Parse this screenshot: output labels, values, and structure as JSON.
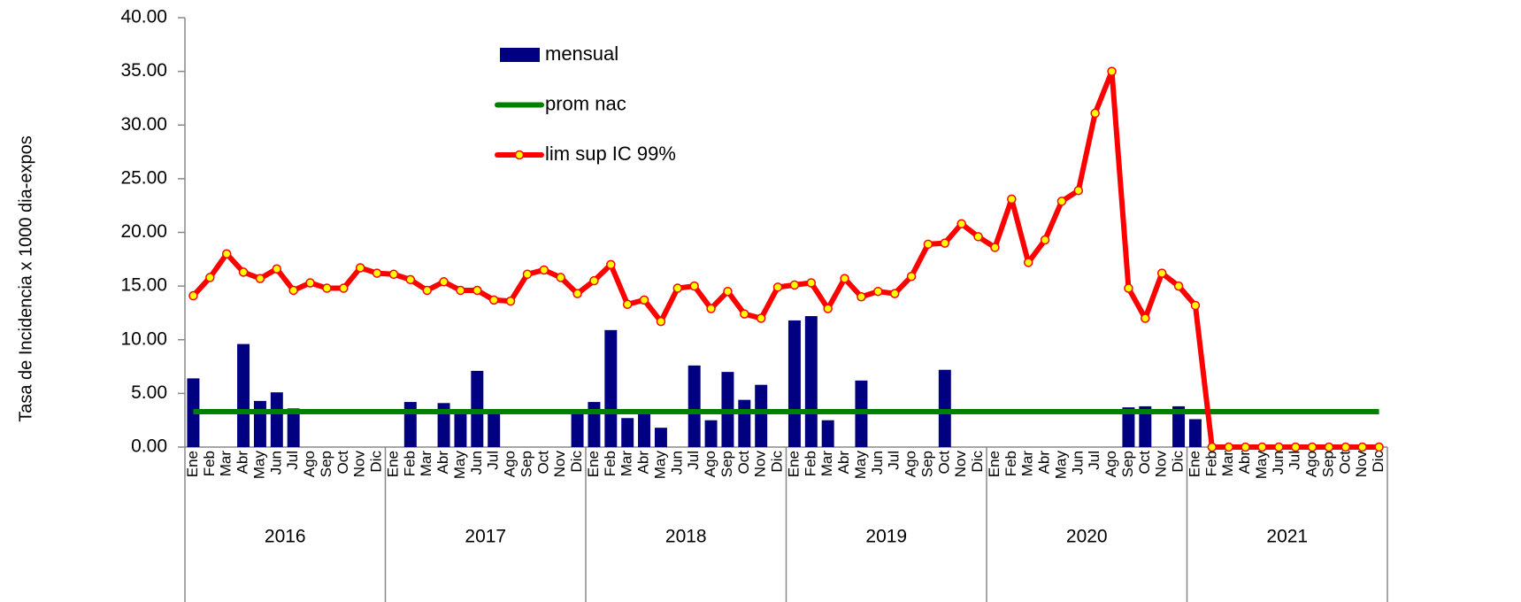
{
  "chart_data": {
    "type": "bar_line",
    "y_axis_label": "Tasa de Incidencia x 1000 dia-expos",
    "categories": [
      "Ene",
      "Feb",
      "Mar",
      "Abr",
      "May",
      "Jun",
      "Jul",
      "Ago",
      "Sep",
      "Oct",
      "Nov",
      "Dic",
      "Ene",
      "Feb",
      "Mar",
      "Abr",
      "May",
      "Jun",
      "Jul",
      "Ago",
      "Sep",
      "Oct",
      "Nov",
      "Dic",
      "Ene",
      "Feb",
      "Mar",
      "Abr",
      "May",
      "Jun",
      "Jul",
      "Ago",
      "Sep",
      "Oct",
      "Nov",
      "Dic",
      "Ene",
      "Feb",
      "Mar",
      "Abr",
      "May",
      "Jun",
      "Jul",
      "Ago",
      "Sep",
      "Oct",
      "Nov",
      "Dic",
      "Ene",
      "Feb",
      "Mar",
      "Abr",
      "May",
      "Jun",
      "Jul",
      "Ago",
      "Sep",
      "Oct",
      "Nov",
      "Dic",
      "Ene",
      "Feb",
      "Mar",
      "Abr",
      "May",
      "Jun",
      "Jul",
      "Ago",
      "Sep",
      "Oct",
      "Nov",
      "Dic"
    ],
    "year_groups": [
      "2016",
      "2017",
      "2018",
      "2019",
      "2020",
      "2021"
    ],
    "ylim": [
      0,
      40
    ],
    "yticks": [
      {
        "value": 0,
        "label": "0.00"
      },
      {
        "value": 5,
        "label": "5.00"
      },
      {
        "value": 10,
        "label": "10.00"
      },
      {
        "value": 15,
        "label": "15.00"
      },
      {
        "value": 20,
        "label": "20.00"
      },
      {
        "value": 25,
        "label": "25.00"
      },
      {
        "value": 30,
        "label": "30.00"
      },
      {
        "value": 35,
        "label": "35.00"
      },
      {
        "value": 40,
        "label": "40.00"
      }
    ],
    "marker_color": "#ffff00",
    "series": [
      {
        "name": "mensual",
        "kind": "bar",
        "color": "#000080",
        "values": [
          6.4,
          0,
          0,
          9.6,
          4.3,
          5.1,
          3.6,
          0,
          0,
          0,
          0,
          0,
          0,
          4.2,
          0,
          4.1,
          3.4,
          7.1,
          3.1,
          0,
          0,
          0,
          0,
          3.4,
          4.2,
          10.9,
          2.7,
          3.1,
          1.8,
          0,
          7.6,
          2.5,
          7.0,
          4.4,
          5.8,
          0,
          11.8,
          12.2,
          2.5,
          0,
          6.2,
          0,
          0,
          0,
          0,
          7.2,
          0,
          0,
          0,
          0,
          0,
          0,
          0,
          0,
          0,
          0,
          3.7,
          3.8,
          0,
          3.8,
          2.6,
          0,
          0,
          0,
          0,
          0,
          0,
          0,
          0,
          0,
          0,
          0
        ]
      },
      {
        "name": "prom nac",
        "kind": "line",
        "color": "#008000",
        "values": [
          3.3,
          3.3,
          3.3,
          3.3,
          3.3,
          3.3,
          3.3,
          3.3,
          3.3,
          3.3,
          3.3,
          3.3,
          3.3,
          3.3,
          3.3,
          3.3,
          3.3,
          3.3,
          3.3,
          3.3,
          3.3,
          3.3,
          3.3,
          3.3,
          3.3,
          3.3,
          3.3,
          3.3,
          3.3,
          3.3,
          3.3,
          3.3,
          3.3,
          3.3,
          3.3,
          3.3,
          3.3,
          3.3,
          3.3,
          3.3,
          3.3,
          3.3,
          3.3,
          3.3,
          3.3,
          3.3,
          3.3,
          3.3,
          3.3,
          3.3,
          3.3,
          3.3,
          3.3,
          3.3,
          3.3,
          3.3,
          3.3,
          3.3,
          3.3,
          3.3,
          3.3,
          3.3,
          3.3,
          3.3,
          3.3,
          3.3,
          3.3,
          3.3,
          3.3,
          3.3,
          3.3,
          3.3
        ]
      },
      {
        "name": "lim sup IC 99%",
        "kind": "line_markers",
        "color": "#ff0000",
        "values": [
          14.1,
          15.8,
          18.0,
          16.3,
          15.7,
          16.6,
          14.6,
          15.3,
          14.8,
          14.8,
          16.7,
          16.2,
          16.1,
          15.6,
          14.6,
          15.4,
          14.6,
          14.6,
          13.7,
          13.6,
          16.1,
          16.5,
          15.8,
          14.3,
          15.5,
          17.0,
          13.3,
          13.7,
          11.7,
          14.8,
          15.0,
          12.9,
          14.5,
          12.4,
          12.0,
          14.9,
          15.1,
          15.3,
          12.9,
          15.7,
          14.0,
          14.5,
          14.3,
          15.9,
          18.9,
          19.0,
          20.8,
          19.6,
          18.6,
          23.1,
          17.2,
          19.3,
          22.9,
          23.9,
          31.1,
          35.0,
          14.8,
          12.0,
          16.2,
          15.0,
          13.2,
          0,
          0,
          0,
          0,
          0,
          0,
          0,
          0,
          0,
          0,
          0
        ]
      }
    ]
  }
}
